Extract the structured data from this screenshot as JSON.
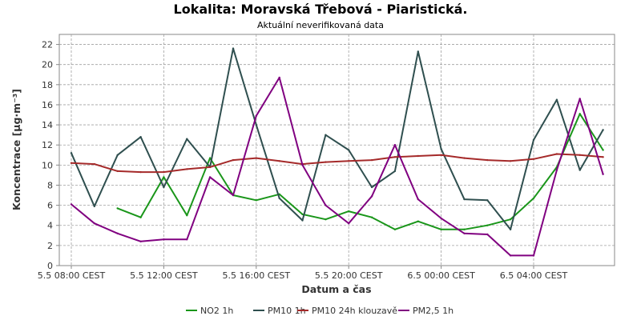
{
  "chart_data": {
    "type": "line",
    "title": "Lokalita: Moravská Třebová - Piaristická.",
    "subtitle": "Aktuální neverifikovaná data",
    "xlabel": "Datum a čas",
    "ylabel": "Koncentrace [µg·m⁻³]",
    "ylim": [
      0,
      23
    ],
    "yticks": [
      0,
      2,
      4,
      6,
      8,
      10,
      12,
      14,
      16,
      18,
      20,
      22
    ],
    "x": [
      "5.5 08:00",
      "5.5 09:00",
      "5.5 10:00",
      "5.5 11:00",
      "5.5 12:00",
      "5.5 13:00",
      "5.5 14:00",
      "5.5 15:00",
      "5.5 16:00",
      "5.5 17:00",
      "5.5 18:00",
      "5.5 19:00",
      "5.5 20:00",
      "5.5 21:00",
      "5.5 22:00",
      "5.5 23:00",
      "6.5 00:00",
      "6.5 01:00",
      "6.5 02:00",
      "6.5 03:00",
      "6.5 04:00",
      "6.5 05:00",
      "6.5 06:00",
      "6.5 07:00"
    ],
    "xticks": [
      {
        "index": 0,
        "label": "5.5 08:00 CEST"
      },
      {
        "index": 4,
        "label": "5.5 12:00 CEST"
      },
      {
        "index": 8,
        "label": "5.5 16:00 CEST"
      },
      {
        "index": 12,
        "label": "5.5 20:00 CEST"
      },
      {
        "index": 16,
        "label": "6.5 00:00 CEST"
      },
      {
        "index": 20,
        "label": "6.5 04:00 CEST"
      }
    ],
    "grid": true,
    "legend_position": "bottom",
    "series": [
      {
        "name": "NO2 1h",
        "color": "#1a961a",
        "values": [
          null,
          null,
          5.7,
          4.8,
          8.8,
          5.0,
          10.7,
          7.0,
          6.5,
          7.1,
          5.1,
          4.6,
          5.4,
          4.8,
          3.6,
          4.4,
          3.6,
          3.6,
          4.0,
          4.6,
          6.7,
          9.8,
          15.1,
          11.5
        ]
      },
      {
        "name": "PM10 1h",
        "color": "#2f4f4f",
        "values": [
          11.2,
          5.9,
          11.0,
          12.8,
          7.8,
          12.6,
          9.8,
          21.6,
          14.0,
          6.7,
          4.5,
          13.0,
          11.5,
          7.8,
          9.4,
          21.3,
          11.6,
          6.6,
          6.5,
          3.6,
          12.5,
          16.5,
          9.5,
          13.5
        ]
      },
      {
        "name": "PM10 24h klouzavě",
        "color": "#a52a2a",
        "values": [
          10.2,
          10.1,
          9.4,
          9.3,
          9.3,
          9.6,
          9.8,
          10.5,
          10.7,
          10.4,
          10.1,
          10.3,
          10.4,
          10.5,
          10.8,
          10.9,
          11.0,
          10.7,
          10.5,
          10.4,
          10.6,
          11.1,
          11.0,
          10.8
        ]
      },
      {
        "name": "PM2,5 1h",
        "color": "#800080",
        "values": [
          6.1,
          4.2,
          3.2,
          2.4,
          2.6,
          2.6,
          8.8,
          7.0,
          14.9,
          18.7,
          10.0,
          6.0,
          4.2,
          6.9,
          12.0,
          6.6,
          4.7,
          3.2,
          3.1,
          1.0,
          1.0,
          9.5,
          16.6,
          9.1
        ]
      }
    ]
  }
}
